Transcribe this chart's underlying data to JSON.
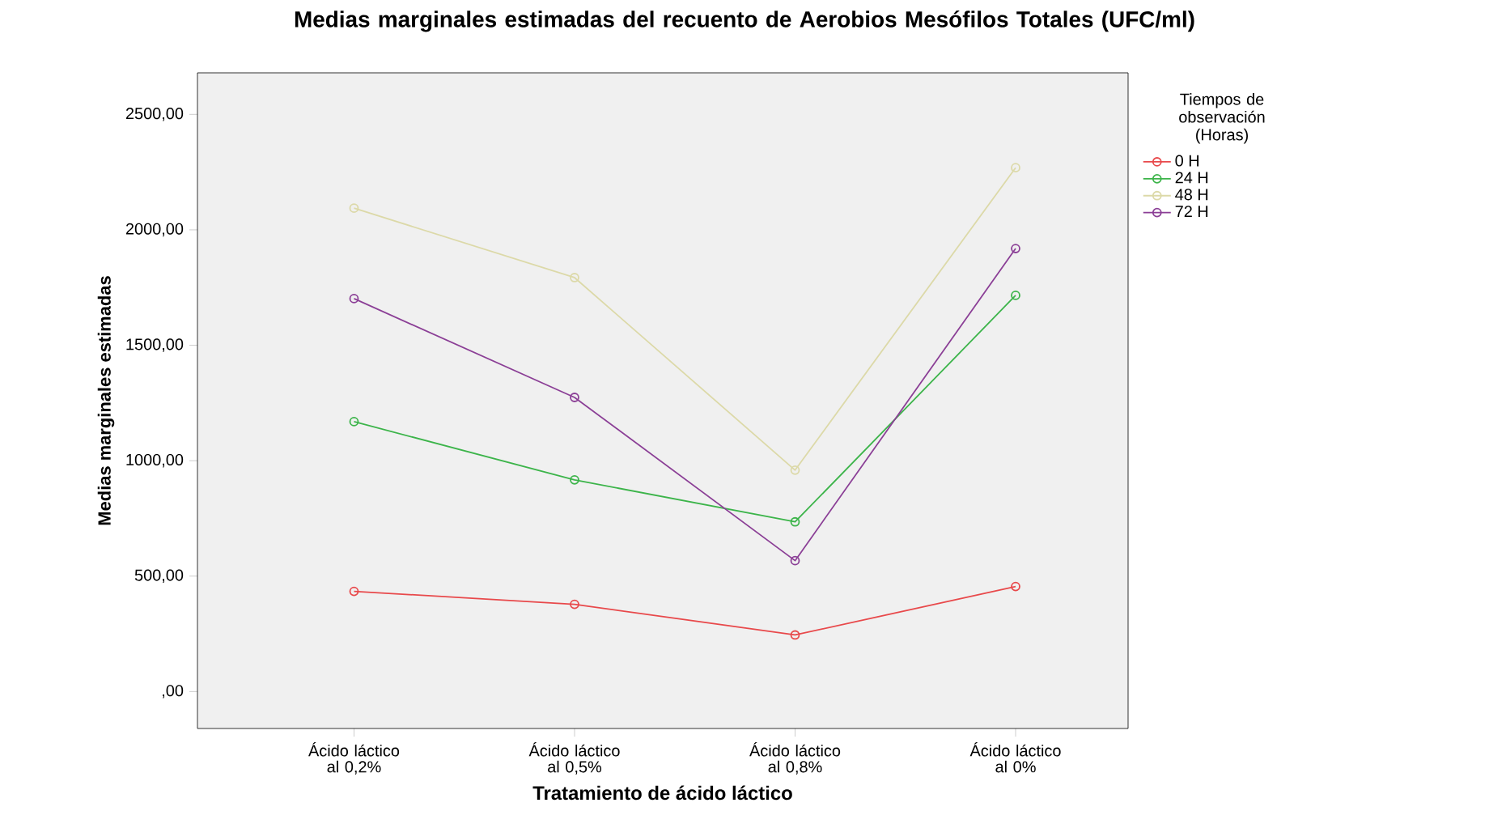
{
  "chart_data": {
    "type": "line",
    "title": "Medias marginales estimadas del recuento de Aerobios Mesófilos Totales (UFC/ml)",
    "xlabel": "Tratamiento de ácido láctico",
    "ylabel": "Medias marginales estimadas",
    "legend_title": "Tiempos de observación (Horas)",
    "categories": [
      "Ácido láctico al 0,2%",
      "Ácido láctico al 0,5%",
      "Ácido láctico al 0,8%",
      "Ácido láctico al 0%"
    ],
    "series": [
      {
        "name": "0 H",
        "color": "#e8494b",
        "values": [
          434,
          378,
          245,
          455
        ]
      },
      {
        "name": "24 H",
        "color": "#3cb44a",
        "values": [
          1169,
          917,
          735,
          1716
        ]
      },
      {
        "name": "48 H",
        "color": "#dcd9a8",
        "values": [
          2094,
          1793,
          959,
          2269
        ]
      },
      {
        "name": "72 H",
        "color": "#8b3f96",
        "values": [
          1702,
          1274,
          567,
          1919
        ]
      }
    ],
    "ylim": [
      -160,
      2680
    ],
    "yticks": [
      {
        "value": 0,
        "label": ",00"
      },
      {
        "value": 500,
        "label": "500,00"
      },
      {
        "value": 1000,
        "label": "1000,00"
      },
      {
        "value": 1500,
        "label": "1500,00"
      },
      {
        "value": 2000,
        "label": "2000,00"
      },
      {
        "value": 2500,
        "label": "2500,00"
      }
    ],
    "grid": false,
    "legend": "right",
    "marker": "circle",
    "line_style": "solid"
  }
}
